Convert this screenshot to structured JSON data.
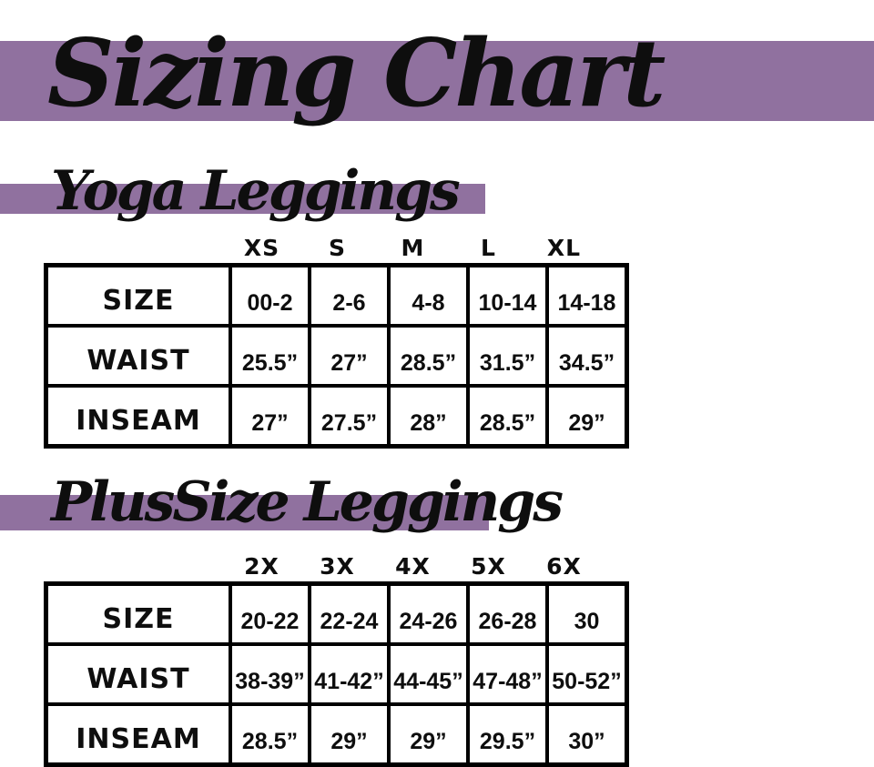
{
  "title": "Sizing Chart",
  "colors": {
    "accent_purple": "#90719f",
    "text_ink": "#0e0e0e"
  },
  "chart_data": [
    {
      "type": "table",
      "title": "Yoga Leggings",
      "column_headers": [
        "XS",
        "S",
        "M",
        "L",
        "XL"
      ],
      "rows": [
        {
          "label": "SIZE",
          "values": [
            "00-2",
            "2-6",
            "4-8",
            "10-14",
            "14-18"
          ]
        },
        {
          "label": "WAIST",
          "values": [
            "25.5”",
            "27”",
            "28.5”",
            "31.5”",
            "34.5”"
          ]
        },
        {
          "label": "INSEAM",
          "values": [
            "27”",
            "27.5”",
            "28”",
            "28.5”",
            "29”"
          ]
        }
      ]
    },
    {
      "type": "table",
      "title": "PlusSize Leggings",
      "column_headers": [
        "2X",
        "3X",
        "4X",
        "5X",
        "6X"
      ],
      "rows": [
        {
          "label": "SIZE",
          "values": [
            "20-22",
            "22-24",
            "24-26",
            "26-28",
            "30"
          ]
        },
        {
          "label": "WAIST",
          "values": [
            "38-39”",
            "41-42”",
            "44-45”",
            "47-48”",
            "50-52”"
          ]
        },
        {
          "label": "INSEAM",
          "values": [
            "28.5”",
            "29”",
            "29”",
            "29.5”",
            "30”"
          ]
        }
      ]
    }
  ]
}
